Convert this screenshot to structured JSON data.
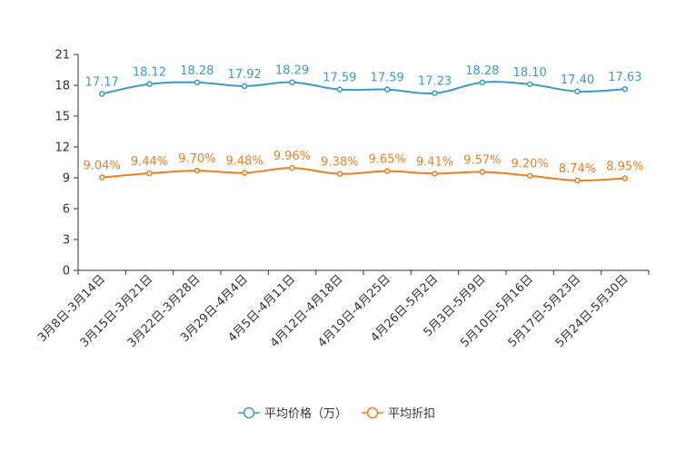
{
  "chart_data": {
    "type": "line",
    "categories": [
      "3月8日-3月14日",
      "3月15日-3月21日",
      "3月22日-3月28日",
      "3月29日-4月4日",
      "4月5日-4月11日",
      "4月12日-4月18日",
      "4月19日-4月25日",
      "4月26日-5月2日",
      "5月3日-5月9日",
      "5月10日-5月16日",
      "5月17日-5月23日",
      "5月24日-5月30日"
    ],
    "series": [
      {
        "name": "平均价格（万）",
        "color": "#3a9bc9",
        "values": [
          17.17,
          18.12,
          18.28,
          17.92,
          18.29,
          17.59,
          17.59,
          17.23,
          18.28,
          18.1,
          17.4,
          17.63
        ],
        "labels": [
          "17.17",
          "18.12",
          "18.28",
          "17.92",
          "18.29",
          "17.59",
          "17.59",
          "17.23",
          "18.28",
          "18.10",
          "17.40",
          "17.63"
        ]
      },
      {
        "name": "平均折扣",
        "color": "#f07d1e",
        "values": [
          9.04,
          9.44,
          9.7,
          9.48,
          9.96,
          9.38,
          9.65,
          9.41,
          9.57,
          9.2,
          8.74,
          8.95
        ],
        "labels": [
          "9.04%",
          "9.44%",
          "9.70%",
          "9.48%",
          "9.96%",
          "9.38%",
          "9.65%",
          "9.41%",
          "9.57%",
          "9.20%",
          "8.74%",
          "8.95%"
        ]
      }
    ],
    "yticks": [
      "0",
      "3",
      "6",
      "9",
      "12",
      "15",
      "18",
      "21"
    ],
    "ylim": [
      0,
      21
    ],
    "title": "",
    "xlabel": "",
    "ylabel": "",
    "legend_position": "bottom-center"
  }
}
